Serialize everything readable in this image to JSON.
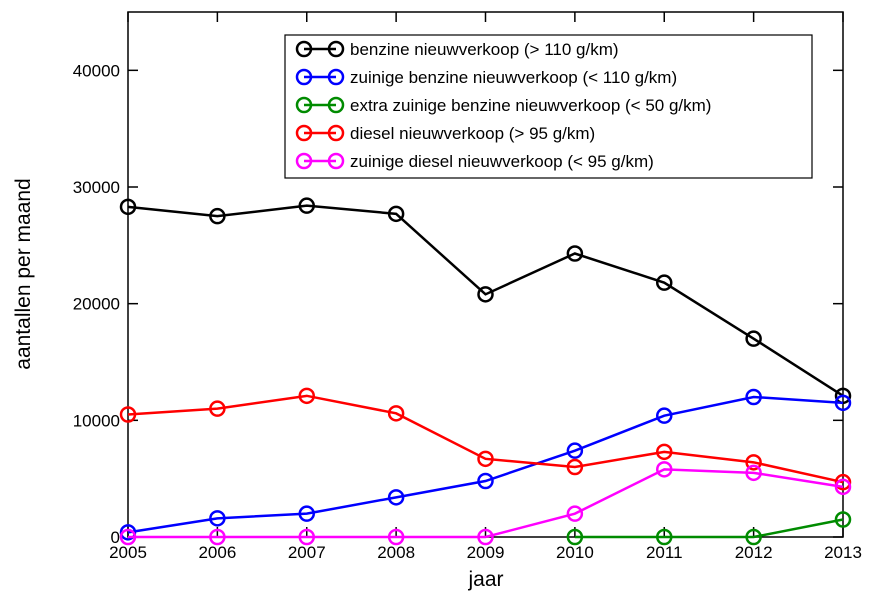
{
  "chart_data": {
    "type": "line",
    "x_label": "jaar",
    "y_label": "aantallen per maand",
    "x": [
      2005,
      2006,
      2007,
      2008,
      2009,
      2010,
      2011,
      2012,
      2013
    ],
    "series": [
      {
        "name": "benzine nieuwverkoop (> 110 g/km)",
        "color": "#000000",
        "values": [
          28300,
          27500,
          28400,
          27700,
          20800,
          24300,
          21800,
          17000,
          12100
        ]
      },
      {
        "name": "zuinige benzine nieuwverkoop (< 110 g/km)",
        "color": "#0000ff",
        "values": [
          400,
          1600,
          2000,
          3400,
          4800,
          7400,
          10400,
          12000,
          11500
        ]
      },
      {
        "name": "extra zuinige benzine nieuwverkoop (< 50 g/km)",
        "color": "#008b00",
        "values": [
          null,
          null,
          null,
          null,
          null,
          0,
          0,
          0,
          1500
        ]
      },
      {
        "name": "diesel nieuwverkoop (> 95 g/km)",
        "color": "#ff0000",
        "values": [
          10500,
          11000,
          12100,
          10600,
          6700,
          6000,
          7300,
          6400,
          4700
        ]
      },
      {
        "name": "zuinige diesel nieuwverkoop (< 95 g/km)",
        "color": "#ff00ff",
        "values": [
          0,
          0,
          0,
          0,
          0,
          2000,
          5800,
          5500,
          4300
        ]
      }
    ],
    "xlim": [
      2005,
      2013
    ],
    "xticks": [
      2005,
      2006,
      2007,
      2008,
      2009,
      2010,
      2011,
      2012,
      2013
    ],
    "ylim": [
      0,
      45000
    ],
    "yticks": [
      0,
      10000,
      20000,
      30000,
      40000
    ]
  }
}
